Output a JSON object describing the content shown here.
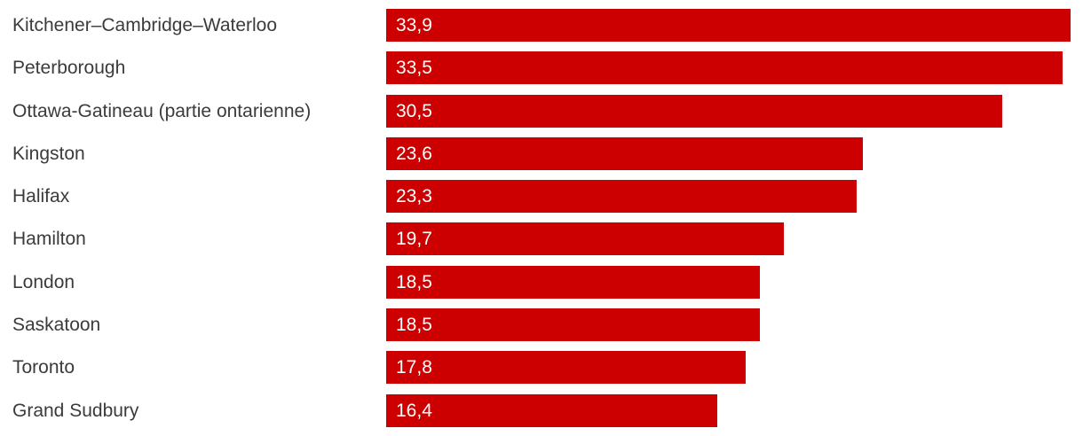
{
  "chart_data": {
    "type": "bar",
    "orientation": "horizontal",
    "title": "",
    "xlabel": "",
    "ylabel": "",
    "categories": [
      "Kitchener–Cambridge–Waterloo",
      "Peterborough",
      "Ottawa-Gatineau (partie ontarienne)",
      "Kingston",
      "Halifax",
      "Hamilton",
      "London",
      "Saskatoon",
      "Toronto",
      "Grand Sudbury"
    ],
    "values": [
      33.9,
      33.5,
      30.5,
      23.6,
      23.3,
      19.7,
      18.5,
      18.5,
      17.8,
      16.4
    ],
    "value_labels": [
      "33,9",
      "33,5",
      "30,5",
      "23,6",
      "23,3",
      "19,7",
      "18,5",
      "18,5",
      "17,8",
      "16,4"
    ],
    "xlim": [
      0,
      34.5
    ],
    "grid": false,
    "legend": false,
    "bar_color": "#cc0000",
    "value_label_color": "#ffffff",
    "category_label_color": "#3b3b3b"
  }
}
